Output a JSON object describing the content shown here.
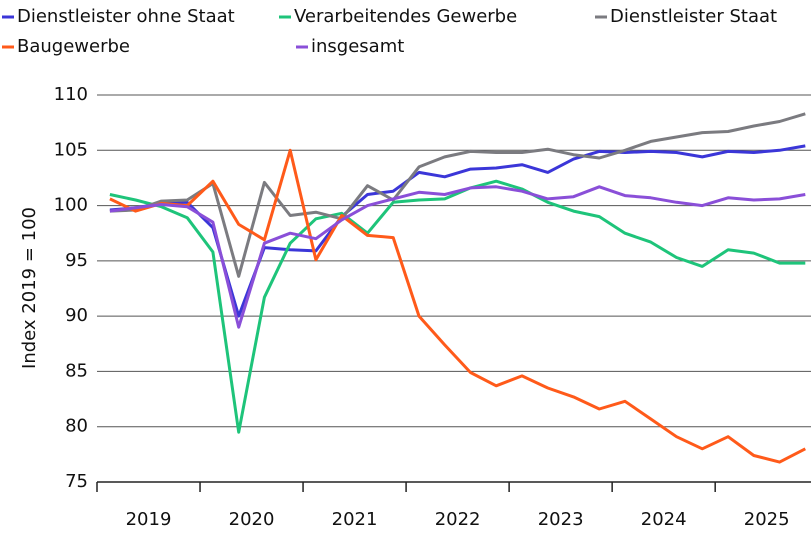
{
  "chart_data": {
    "type": "line",
    "y_label": "Index 2019 = 100",
    "x": [
      2019.125,
      2019.375,
      2019.625,
      2019.875,
      2020.125,
      2020.375,
      2020.625,
      2020.875,
      2021.125,
      2021.375,
      2021.625,
      2021.875,
      2022.125,
      2022.375,
      2022.625,
      2022.875,
      2023.125,
      2023.375,
      2023.625,
      2023.875,
      2024.125,
      2024.375,
      2024.625,
      2024.875,
      2025.125,
      2025.375,
      2025.625,
      2025.875
    ],
    "xlim": [
      2019,
      2025.93
    ],
    "xticks": [
      2019,
      2020,
      2021,
      2022,
      2023,
      2024,
      2025
    ],
    "ylim": [
      75,
      110
    ],
    "yticks": [
      75,
      80,
      85,
      90,
      95,
      100,
      105,
      110
    ],
    "grid": true,
    "series": [
      {
        "name": "Dienstleister ohne Staat",
        "color": "#3b36d8",
        "values": [
          99.6,
          99.8,
          100.2,
          100.3,
          98.0,
          90.0,
          96.2,
          96.0,
          95.9,
          99.0,
          101.0,
          101.3,
          103.0,
          102.6,
          103.3,
          103.4,
          103.7,
          103.0,
          104.2,
          104.9,
          104.8,
          104.9,
          104.8,
          104.4,
          104.9,
          104.8,
          105.0,
          105.4
        ]
      },
      {
        "name": "Verarbeitendes Gewerbe",
        "color": "#1ec47a",
        "values": [
          101.0,
          100.5,
          99.9,
          98.9,
          95.8,
          79.5,
          91.7,
          96.6,
          98.8,
          99.3,
          97.5,
          100.3,
          100.5,
          100.6,
          101.6,
          102.2,
          101.5,
          100.3,
          99.5,
          99.0,
          97.5,
          96.7,
          95.3,
          94.5,
          96.0,
          95.7,
          94.8,
          94.8
        ]
      },
      {
        "name": "Dienstleister Staat",
        "color": "#7b7b80",
        "values": [
          99.5,
          99.6,
          100.4,
          100.5,
          102.0,
          93.6,
          102.1,
          99.1,
          99.4,
          98.8,
          101.8,
          100.5,
          103.5,
          104.4,
          104.9,
          104.8,
          104.8,
          105.1,
          104.6,
          104.3,
          105.0,
          105.8,
          106.2,
          106.6,
          106.7,
          107.2,
          107.6,
          108.3
        ]
      },
      {
        "name": "Baugewerbe",
        "color": "#ff5a1a",
        "values": [
          100.6,
          99.5,
          100.2,
          100.0,
          102.2,
          98.3,
          96.9,
          105.0,
          95.1,
          99.1,
          97.3,
          97.1,
          90.0,
          87.4,
          84.9,
          83.7,
          84.6,
          83.5,
          82.7,
          81.6,
          82.3,
          80.7,
          79.1,
          78.0,
          79.1,
          77.4,
          76.8,
          78.0
        ]
      },
      {
        "name": "insgesamt",
        "color": "#8a4fd8",
        "values": [
          99.5,
          99.8,
          100.1,
          99.9,
          98.5,
          89.0,
          96.6,
          97.5,
          97.0,
          98.7,
          100.0,
          100.6,
          101.2,
          101.0,
          101.6,
          101.7,
          101.3,
          100.6,
          100.8,
          101.7,
          100.9,
          100.7,
          100.3,
          100.0,
          100.7,
          100.5,
          100.6,
          101.0
        ]
      }
    ]
  }
}
